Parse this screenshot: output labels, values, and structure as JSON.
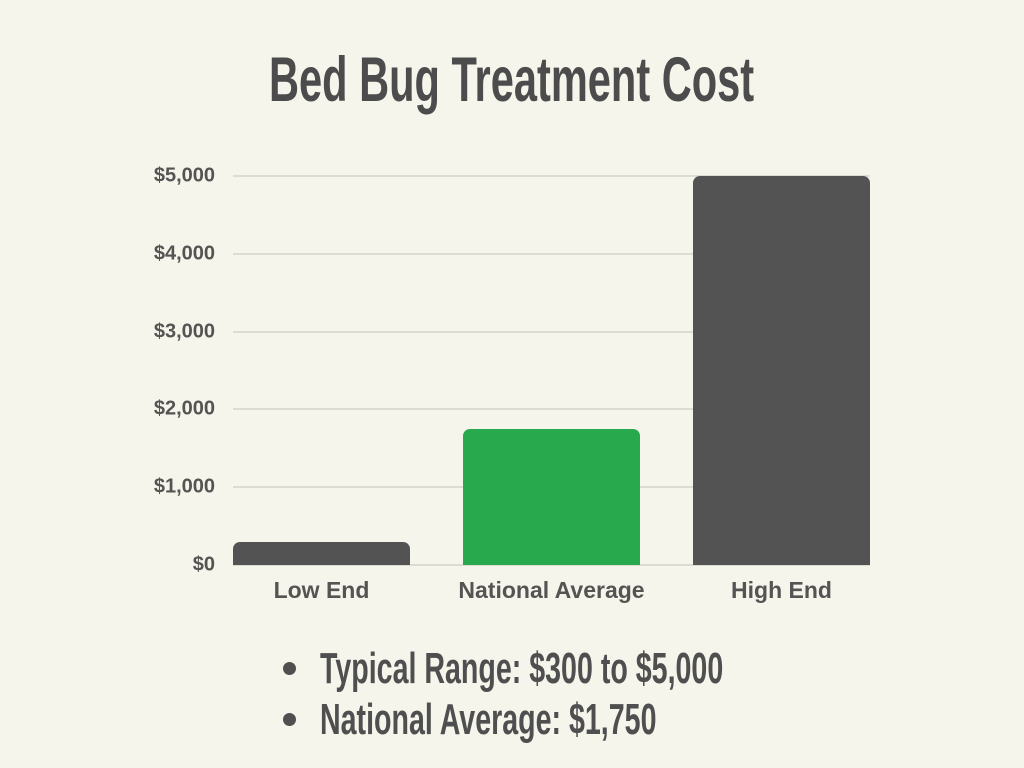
{
  "page": {
    "background_color": "#f6f5ec",
    "text_color": "#4f4f4f"
  },
  "chart_data": {
    "type": "bar",
    "title": "Bed Bug Treatment Cost",
    "categories": [
      "Low End",
      "National Average",
      "High End"
    ],
    "values": [
      300,
      1750,
      5000
    ],
    "bar_colors": [
      "#535353",
      "#29a94d",
      "#535353"
    ],
    "xlabel": "",
    "ylabel": "",
    "ylim": [
      0,
      5000
    ],
    "yticks": [
      {
        "value": 0,
        "label": "$0"
      },
      {
        "value": 1000,
        "label": "$1,000"
      },
      {
        "value": 2000,
        "label": "$2,000"
      },
      {
        "value": 3000,
        "label": "$3,000"
      },
      {
        "value": 4000,
        "label": "$4,000"
      },
      {
        "value": 5000,
        "label": "$5,000"
      }
    ],
    "grid": "horizontal",
    "gridline_color": "#dddcd2",
    "legend": "none"
  },
  "notes": {
    "items": [
      "Typical Range: $300 to $5,000",
      "National Average: $1,750"
    ]
  },
  "colors": {
    "accent_green": "#29a94d",
    "bar_gray": "#535353",
    "background": "#f6f5ec",
    "gridline": "#dddcd2",
    "text": "#4f4f4f"
  }
}
